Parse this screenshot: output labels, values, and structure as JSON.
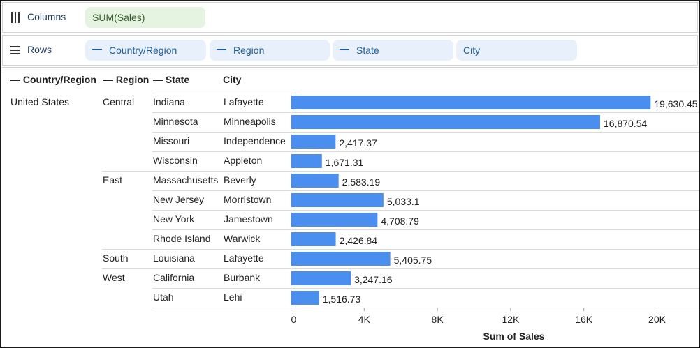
{
  "shelves": {
    "columns": {
      "label": "Columns",
      "pills": [
        {
          "label": "SUM(Sales)",
          "kind": "measure"
        }
      ]
    },
    "rows": {
      "label": "Rows",
      "pills": [
        {
          "label": "Country/Region",
          "collapsible": true
        },
        {
          "label": "Region",
          "collapsible": true
        },
        {
          "label": "State",
          "collapsible": true
        },
        {
          "label": "City",
          "collapsible": false
        }
      ]
    }
  },
  "table_headers": [
    "— Country/Region",
    "— Region",
    "— State",
    "City"
  ],
  "colors": {
    "bar": "#4a8ff0",
    "gridline": "#d9d9d9",
    "text": "#222222",
    "measure_pill": "#e5f3e1",
    "dimension_pill": "#e7f0fb"
  },
  "chart_data": {
    "type": "bar",
    "orientation": "horizontal",
    "xlabel": "Sum of Sales",
    "xlim": [
      0,
      22000
    ],
    "xticks": [
      0,
      4000,
      8000,
      12000,
      16000,
      20000
    ],
    "xtick_labels": [
      "0",
      "4K",
      "8K",
      "12K",
      "16K",
      "20K"
    ],
    "rows": [
      {
        "country": "United States",
        "region": "Central",
        "state": "Indiana",
        "city": "Lafayette",
        "value": 19630.45,
        "label": "19,630.45"
      },
      {
        "country": "",
        "region": "",
        "state": "Minnesota",
        "city": "Minneapolis",
        "value": 16870.54,
        "label": "16,870.54"
      },
      {
        "country": "",
        "region": "",
        "state": "Missouri",
        "city": "Independence",
        "value": 2417.37,
        "label": "2,417.37"
      },
      {
        "country": "",
        "region": "",
        "state": "Wisconsin",
        "city": "Appleton",
        "value": 1671.31,
        "label": "1,671.31"
      },
      {
        "country": "",
        "region": "East",
        "state": "Massachusetts",
        "city": "Beverly",
        "value": 2583.19,
        "label": "2,583.19"
      },
      {
        "country": "",
        "region": "",
        "state": "New Jersey",
        "city": "Morristown",
        "value": 5033.1,
        "label": "5,033.1"
      },
      {
        "country": "",
        "region": "",
        "state": "New York",
        "city": "Jamestown",
        "value": 4708.79,
        "label": "4,708.79"
      },
      {
        "country": "",
        "region": "",
        "state": "Rhode Island",
        "city": "Warwick",
        "value": 2426.84,
        "label": "2,426.84"
      },
      {
        "country": "",
        "region": "South",
        "state": "Louisiana",
        "city": "Lafayette",
        "value": 5405.75,
        "label": "5,405.75"
      },
      {
        "country": "",
        "region": "West",
        "state": "California",
        "city": "Burbank",
        "value": 3247.16,
        "label": "3,247.16"
      },
      {
        "country": "",
        "region": "",
        "state": "Utah",
        "city": "Lehi",
        "value": 1516.73,
        "label": "1,516.73"
      }
    ]
  }
}
